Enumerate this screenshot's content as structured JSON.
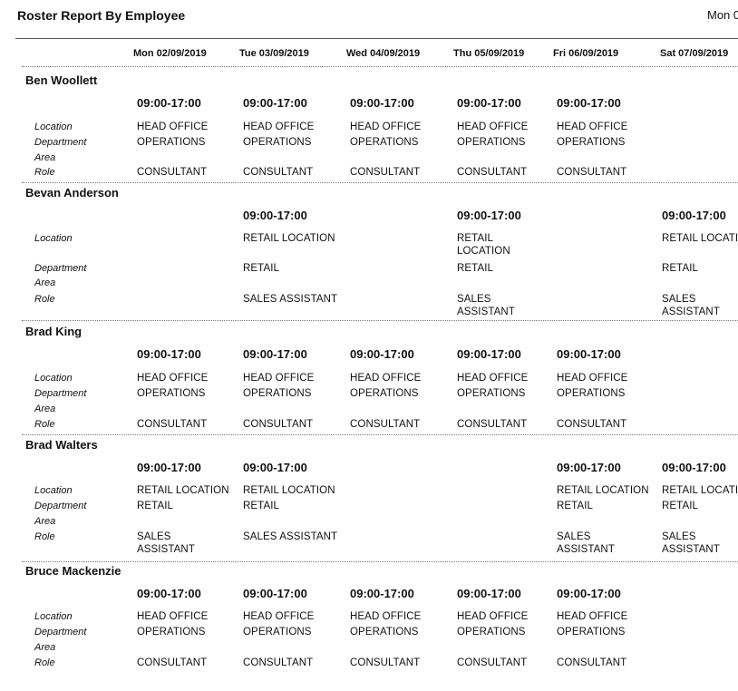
{
  "report": {
    "title": "Roster Report By Employee",
    "date_top": "Mon 0"
  },
  "labels": {
    "location": "Location",
    "department": "Department",
    "area": "Area",
    "role": "Role"
  },
  "days": [
    "Mon 02/09/2019",
    "Tue 03/09/2019",
    "Wed 04/09/2019",
    "Thu 05/09/2019",
    "Fri 06/09/2019",
    "Sat 07/09/2019"
  ],
  "employees": [
    {
      "name": "Ben Woollett",
      "shifts": [
        {
          "day": 0,
          "time": "09:00-17:00",
          "location": "HEAD OFFICE",
          "department": "OPERATIONS",
          "area": "",
          "role": "CONSULTANT"
        },
        {
          "day": 1,
          "time": "09:00-17:00",
          "location": "HEAD OFFICE",
          "department": "OPERATIONS",
          "area": "",
          "role": "CONSULTANT"
        },
        {
          "day": 2,
          "time": "09:00-17:00",
          "location": "HEAD OFFICE",
          "department": "OPERATIONS",
          "area": "",
          "role": "CONSULTANT"
        },
        {
          "day": 3,
          "time": "09:00-17:00",
          "location": "HEAD OFFICE",
          "department": "OPERATIONS",
          "area": "",
          "role": "CONSULTANT"
        },
        {
          "day": 4,
          "time": "09:00-17:00",
          "location": "HEAD OFFICE",
          "department": "OPERATIONS",
          "area": "",
          "role": "CONSULTANT"
        }
      ]
    },
    {
      "name": "Bevan Anderson",
      "shifts": [
        {
          "day": 1,
          "time": "09:00-17:00",
          "location": "RETAIL LOCATION",
          "department": "RETAIL",
          "area": "",
          "role": "SALES ASSISTANT"
        },
        {
          "day": 3,
          "time": "09:00-17:00",
          "location": "RETAIL\nLOCATION",
          "department": "RETAIL",
          "area": "",
          "role": "SALES\nASSISTANT"
        },
        {
          "day": 5,
          "time": "09:00-17:00",
          "location": "RETAIL LOCATION",
          "department": "RETAIL",
          "area": "",
          "role": "SALES\nASSISTANT"
        }
      ]
    },
    {
      "name": "Brad King",
      "shifts": [
        {
          "day": 0,
          "time": "09:00-17:00",
          "location": "HEAD OFFICE",
          "department": "OPERATIONS",
          "area": "",
          "role": "CONSULTANT"
        },
        {
          "day": 1,
          "time": "09:00-17:00",
          "location": "HEAD OFFICE",
          "department": "OPERATIONS",
          "area": "",
          "role": "CONSULTANT"
        },
        {
          "day": 2,
          "time": "09:00-17:00",
          "location": "HEAD OFFICE",
          "department": "OPERATIONS",
          "area": "",
          "role": "CONSULTANT"
        },
        {
          "day": 3,
          "time": "09:00-17:00",
          "location": "HEAD OFFICE",
          "department": "OPERATIONS",
          "area": "",
          "role": "CONSULTANT"
        },
        {
          "day": 4,
          "time": "09:00-17:00",
          "location": "HEAD OFFICE",
          "department": "OPERATIONS",
          "area": "",
          "role": "CONSULTANT"
        }
      ]
    },
    {
      "name": "Brad Walters",
      "shifts": [
        {
          "day": 0,
          "time": "09:00-17:00",
          "location": "RETAIL LOCATION",
          "department": "RETAIL",
          "area": "",
          "role": "SALES\nASSISTANT"
        },
        {
          "day": 1,
          "time": "09:00-17:00",
          "location": "RETAIL LOCATION",
          "department": "RETAIL",
          "area": "",
          "role": "SALES ASSISTANT"
        },
        {
          "day": 4,
          "time": "09:00-17:00",
          "location": "RETAIL LOCATION",
          "department": "RETAIL",
          "area": "",
          "role": "SALES\nASSISTANT"
        },
        {
          "day": 5,
          "time": "09:00-17:00",
          "location": "RETAIL LOCATION",
          "department": "RETAIL",
          "area": "",
          "role": "SALES\nASSISTANT"
        }
      ]
    },
    {
      "name": "Bruce Mackenzie",
      "shifts": [
        {
          "day": 0,
          "time": "09:00-17:00",
          "location": "HEAD OFFICE",
          "department": "OPERATIONS",
          "area": "",
          "role": "CONSULTANT"
        },
        {
          "day": 1,
          "time": "09:00-17:00",
          "location": "HEAD OFFICE",
          "department": "OPERATIONS",
          "area": "",
          "role": "CONSULTANT"
        },
        {
          "day": 2,
          "time": "09:00-17:00",
          "location": "HEAD OFFICE",
          "department": "OPERATIONS",
          "area": "",
          "role": "CONSULTANT"
        },
        {
          "day": 3,
          "time": "09:00-17:00",
          "location": "HEAD OFFICE",
          "department": "OPERATIONS",
          "area": "",
          "role": "CONSULTANT"
        },
        {
          "day": 4,
          "time": "09:00-17:00",
          "location": "HEAD OFFICE",
          "department": "OPERATIONS",
          "area": "",
          "role": "CONSULTANT"
        }
      ]
    }
  ]
}
